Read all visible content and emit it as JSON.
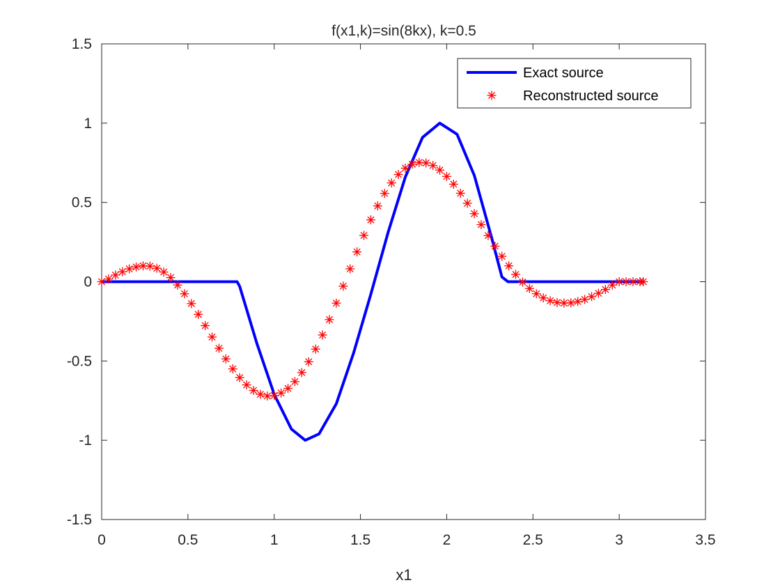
{
  "chart_data": {
    "type": "line",
    "title": "f(x1,k)=sin(8kx),   k=0.5",
    "xlabel": "x1",
    "ylabel": "",
    "xlim": [
      0,
      3.5
    ],
    "ylim": [
      -1.5,
      1.5
    ],
    "xticks": [
      0,
      0.5,
      1,
      1.5,
      2,
      2.5,
      3,
      3.5
    ],
    "xtick_labels": [
      "0",
      "0.5",
      "1",
      "1.5",
      "2",
      "2.5",
      "3",
      "3.5"
    ],
    "yticks": [
      -1.5,
      -1,
      -0.5,
      0,
      0.5,
      1,
      1.5
    ],
    "ytick_labels": [
      "-1.5",
      "-1",
      "-0.5",
      "0",
      "0.5",
      "1",
      "1.5"
    ],
    "grid": false,
    "legend_position": "top-right",
    "series": [
      {
        "name": "Exact source",
        "style": "line",
        "color": "#0000ff",
        "x": [
          0,
          0.2,
          0.4,
          0.6,
          0.76,
          0.785,
          0.8,
          0.9,
          1.0,
          1.1,
          1.18,
          1.26,
          1.36,
          1.46,
          1.56,
          1.66,
          1.76,
          1.86,
          1.96,
          2.06,
          2.16,
          2.26,
          2.32,
          2.355,
          2.38,
          2.6,
          2.8,
          3.0,
          3.14
        ],
        "y": [
          0,
          0,
          0,
          0,
          0,
          0,
          -0.03,
          -0.39,
          -0.71,
          -0.93,
          -1.0,
          -0.96,
          -0.77,
          -0.45,
          -0.08,
          0.31,
          0.66,
          0.91,
          1.0,
          0.93,
          0.67,
          0.28,
          0.03,
          0,
          0,
          0,
          0,
          0,
          0
        ]
      },
      {
        "name": "Reconstructed source",
        "style": "markers",
        "marker": "asterisk",
        "color": "#ff0000",
        "x": [
          0,
          0.04,
          0.08,
          0.12,
          0.16,
          0.2,
          0.24,
          0.28,
          0.32,
          0.36,
          0.4,
          0.44,
          0.48,
          0.52,
          0.56,
          0.6,
          0.64,
          0.68,
          0.72,
          0.76,
          0.8,
          0.84,
          0.88,
          0.92,
          0.96,
          1.0,
          1.04,
          1.08,
          1.12,
          1.16,
          1.2,
          1.24,
          1.28,
          1.32,
          1.36,
          1.4,
          1.44,
          1.48,
          1.52,
          1.56,
          1.6,
          1.64,
          1.68,
          1.72,
          1.76,
          1.8,
          1.84,
          1.88,
          1.92,
          1.96,
          2.0,
          2.04,
          2.08,
          2.12,
          2.16,
          2.2,
          2.24,
          2.28,
          2.32,
          2.36,
          2.4,
          2.44,
          2.48,
          2.52,
          2.56,
          2.6,
          2.64,
          2.68,
          2.72,
          2.76,
          2.8,
          2.84,
          2.88,
          2.92,
          2.96,
          3.0,
          3.04,
          3.08,
          3.12,
          3.14
        ],
        "y": [
          0.0,
          0.017,
          0.042,
          0.063,
          0.081,
          0.093,
          0.1,
          0.098,
          0.085,
          0.061,
          0.026,
          -0.021,
          -0.076,
          -0.138,
          -0.206,
          -0.277,
          -0.349,
          -0.42,
          -0.487,
          -0.55,
          -0.605,
          -0.651,
          -0.686,
          -0.71,
          -0.721,
          -0.718,
          -0.702,
          -0.673,
          -0.63,
          -0.573,
          -0.505,
          -0.425,
          -0.336,
          -0.239,
          -0.135,
          -0.028,
          0.081,
          0.188,
          0.292,
          0.39,
          0.478,
          0.557,
          0.623,
          0.676,
          0.716,
          0.741,
          0.752,
          0.749,
          0.733,
          0.704,
          0.664,
          0.615,
          0.558,
          0.495,
          0.429,
          0.36,
          0.291,
          0.224,
          0.16,
          0.1,
          0.046,
          -0.002,
          -0.043,
          -0.076,
          -0.102,
          -0.12,
          -0.131,
          -0.135,
          -0.133,
          -0.125,
          -0.112,
          -0.094,
          -0.073,
          -0.049,
          -0.021,
          0.0,
          0.0,
          0.0,
          0.0,
          0.0
        ]
      }
    ]
  }
}
